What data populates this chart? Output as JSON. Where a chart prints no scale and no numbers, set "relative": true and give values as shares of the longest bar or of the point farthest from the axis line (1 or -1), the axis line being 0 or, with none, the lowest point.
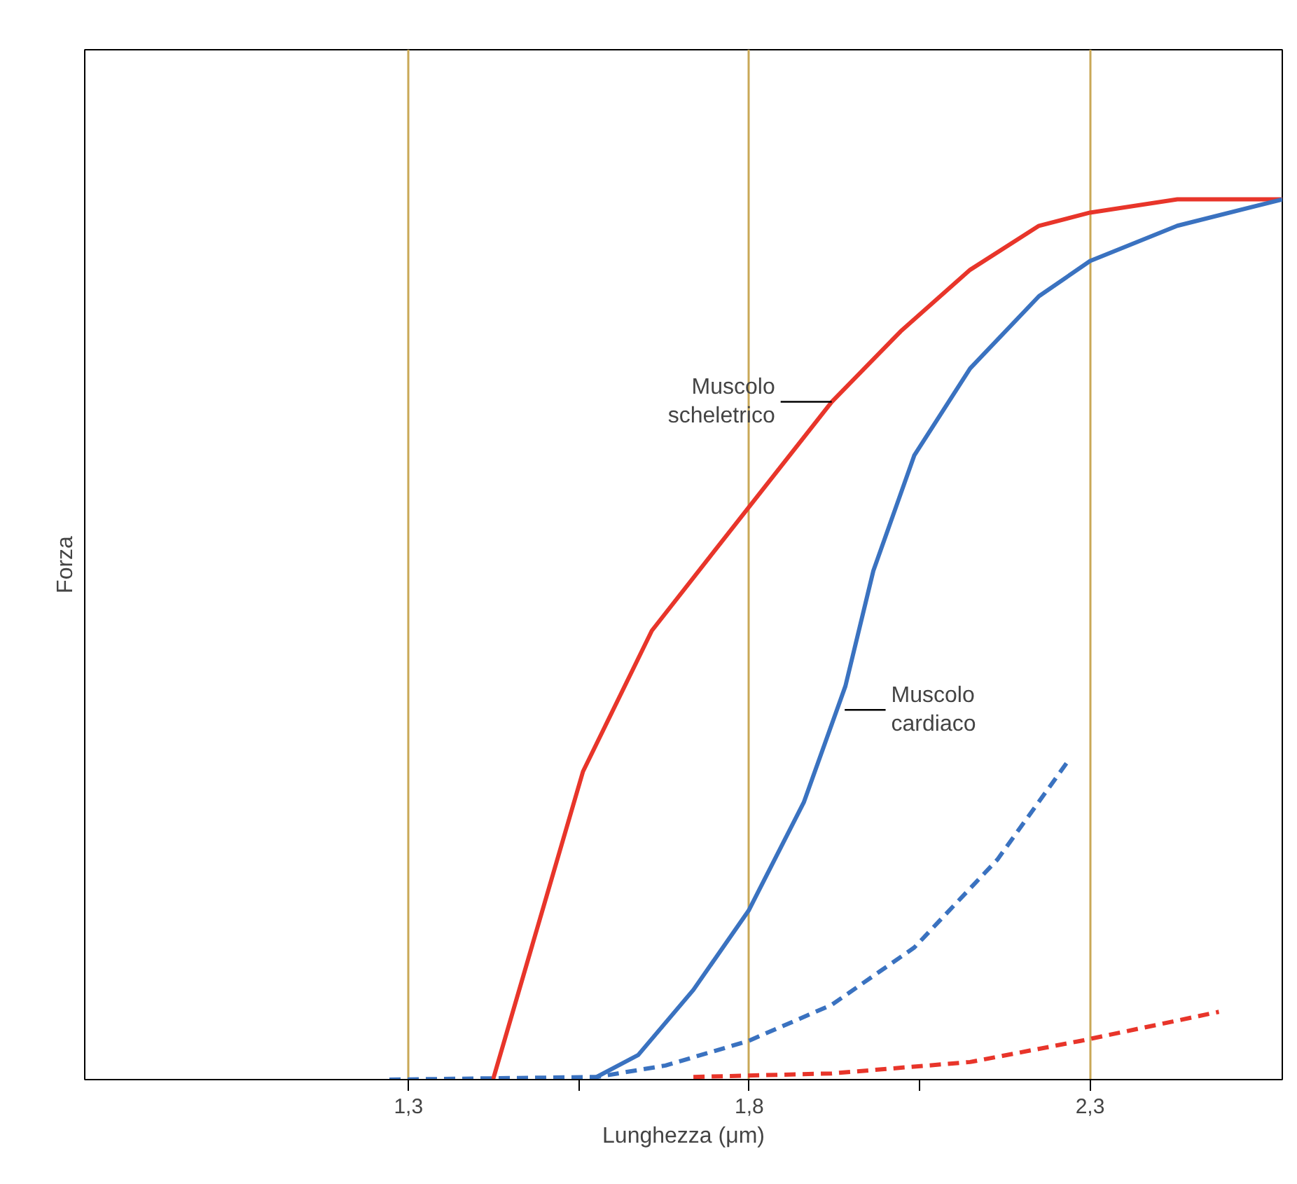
{
  "chart_data": {
    "type": "line",
    "relative": true,
    "xlabel": "Lunghezza (μm)",
    "ylabel": "Forza",
    "xlim": [
      0.825,
      2.582
    ],
    "xticks": [
      {
        "value": 1.3,
        "label": "1,3"
      },
      {
        "value": 1.55,
        "label": null
      },
      {
        "value": 1.8,
        "label": "1,8"
      },
      {
        "value": 2.05,
        "label": null
      },
      {
        "value": 2.3,
        "label": "2,3"
      }
    ],
    "grid": "x",
    "marker": "none",
    "series": [
      {
        "color": "#e8352a",
        "line_style": "solid",
        "x": [
          1.424,
          1.556,
          1.657,
          1.799,
          1.921,
          2.022,
          2.124,
          2.225,
          2.3,
          2.428,
          2.582
        ],
        "values": [
          0,
          0.35,
          0.51,
          0.65,
          0.77,
          0.85,
          0.92,
          0.97,
          0.985,
          1.0,
          1.0
        ]
      },
      {
        "color": "#3a72c0",
        "line_style": "solid",
        "x": [
          1.576,
          1.637,
          1.718,
          1.799,
          1.88,
          1.941,
          1.982,
          2.042,
          2.124,
          2.225,
          2.3,
          2.428,
          2.582
        ],
        "values": [
          0.003,
          0.028,
          0.102,
          0.192,
          0.315,
          0.447,
          0.578,
          0.709,
          0.808,
          0.89,
          0.93,
          0.97,
          1.0
        ]
      },
      {
        "color": "#3a72c0",
        "line_style": "dashed",
        "x": [
          1.272,
          1.576,
          1.677,
          1.799,
          1.921,
          2.042,
          2.164,
          2.266
        ],
        "values": [
          0,
          0.003,
          0.016,
          0.044,
          0.085,
          0.15,
          0.25,
          0.36
        ]
      },
      {
        "color": "#e8352a",
        "line_style": "dashed",
        "x": [
          1.718,
          1.921,
          2.124,
          2.286,
          2.489
        ],
        "values": [
          0.003,
          0.007,
          0.02,
          0.044,
          0.077
        ]
      }
    ],
    "annotations": [
      {
        "text": "Muscolo\nscheletrico",
        "x": 1.921,
        "y": 0.77
      },
      {
        "text": "Muscolo\ncardiaco",
        "x": 1.94,
        "y": 0.42
      }
    ]
  }
}
